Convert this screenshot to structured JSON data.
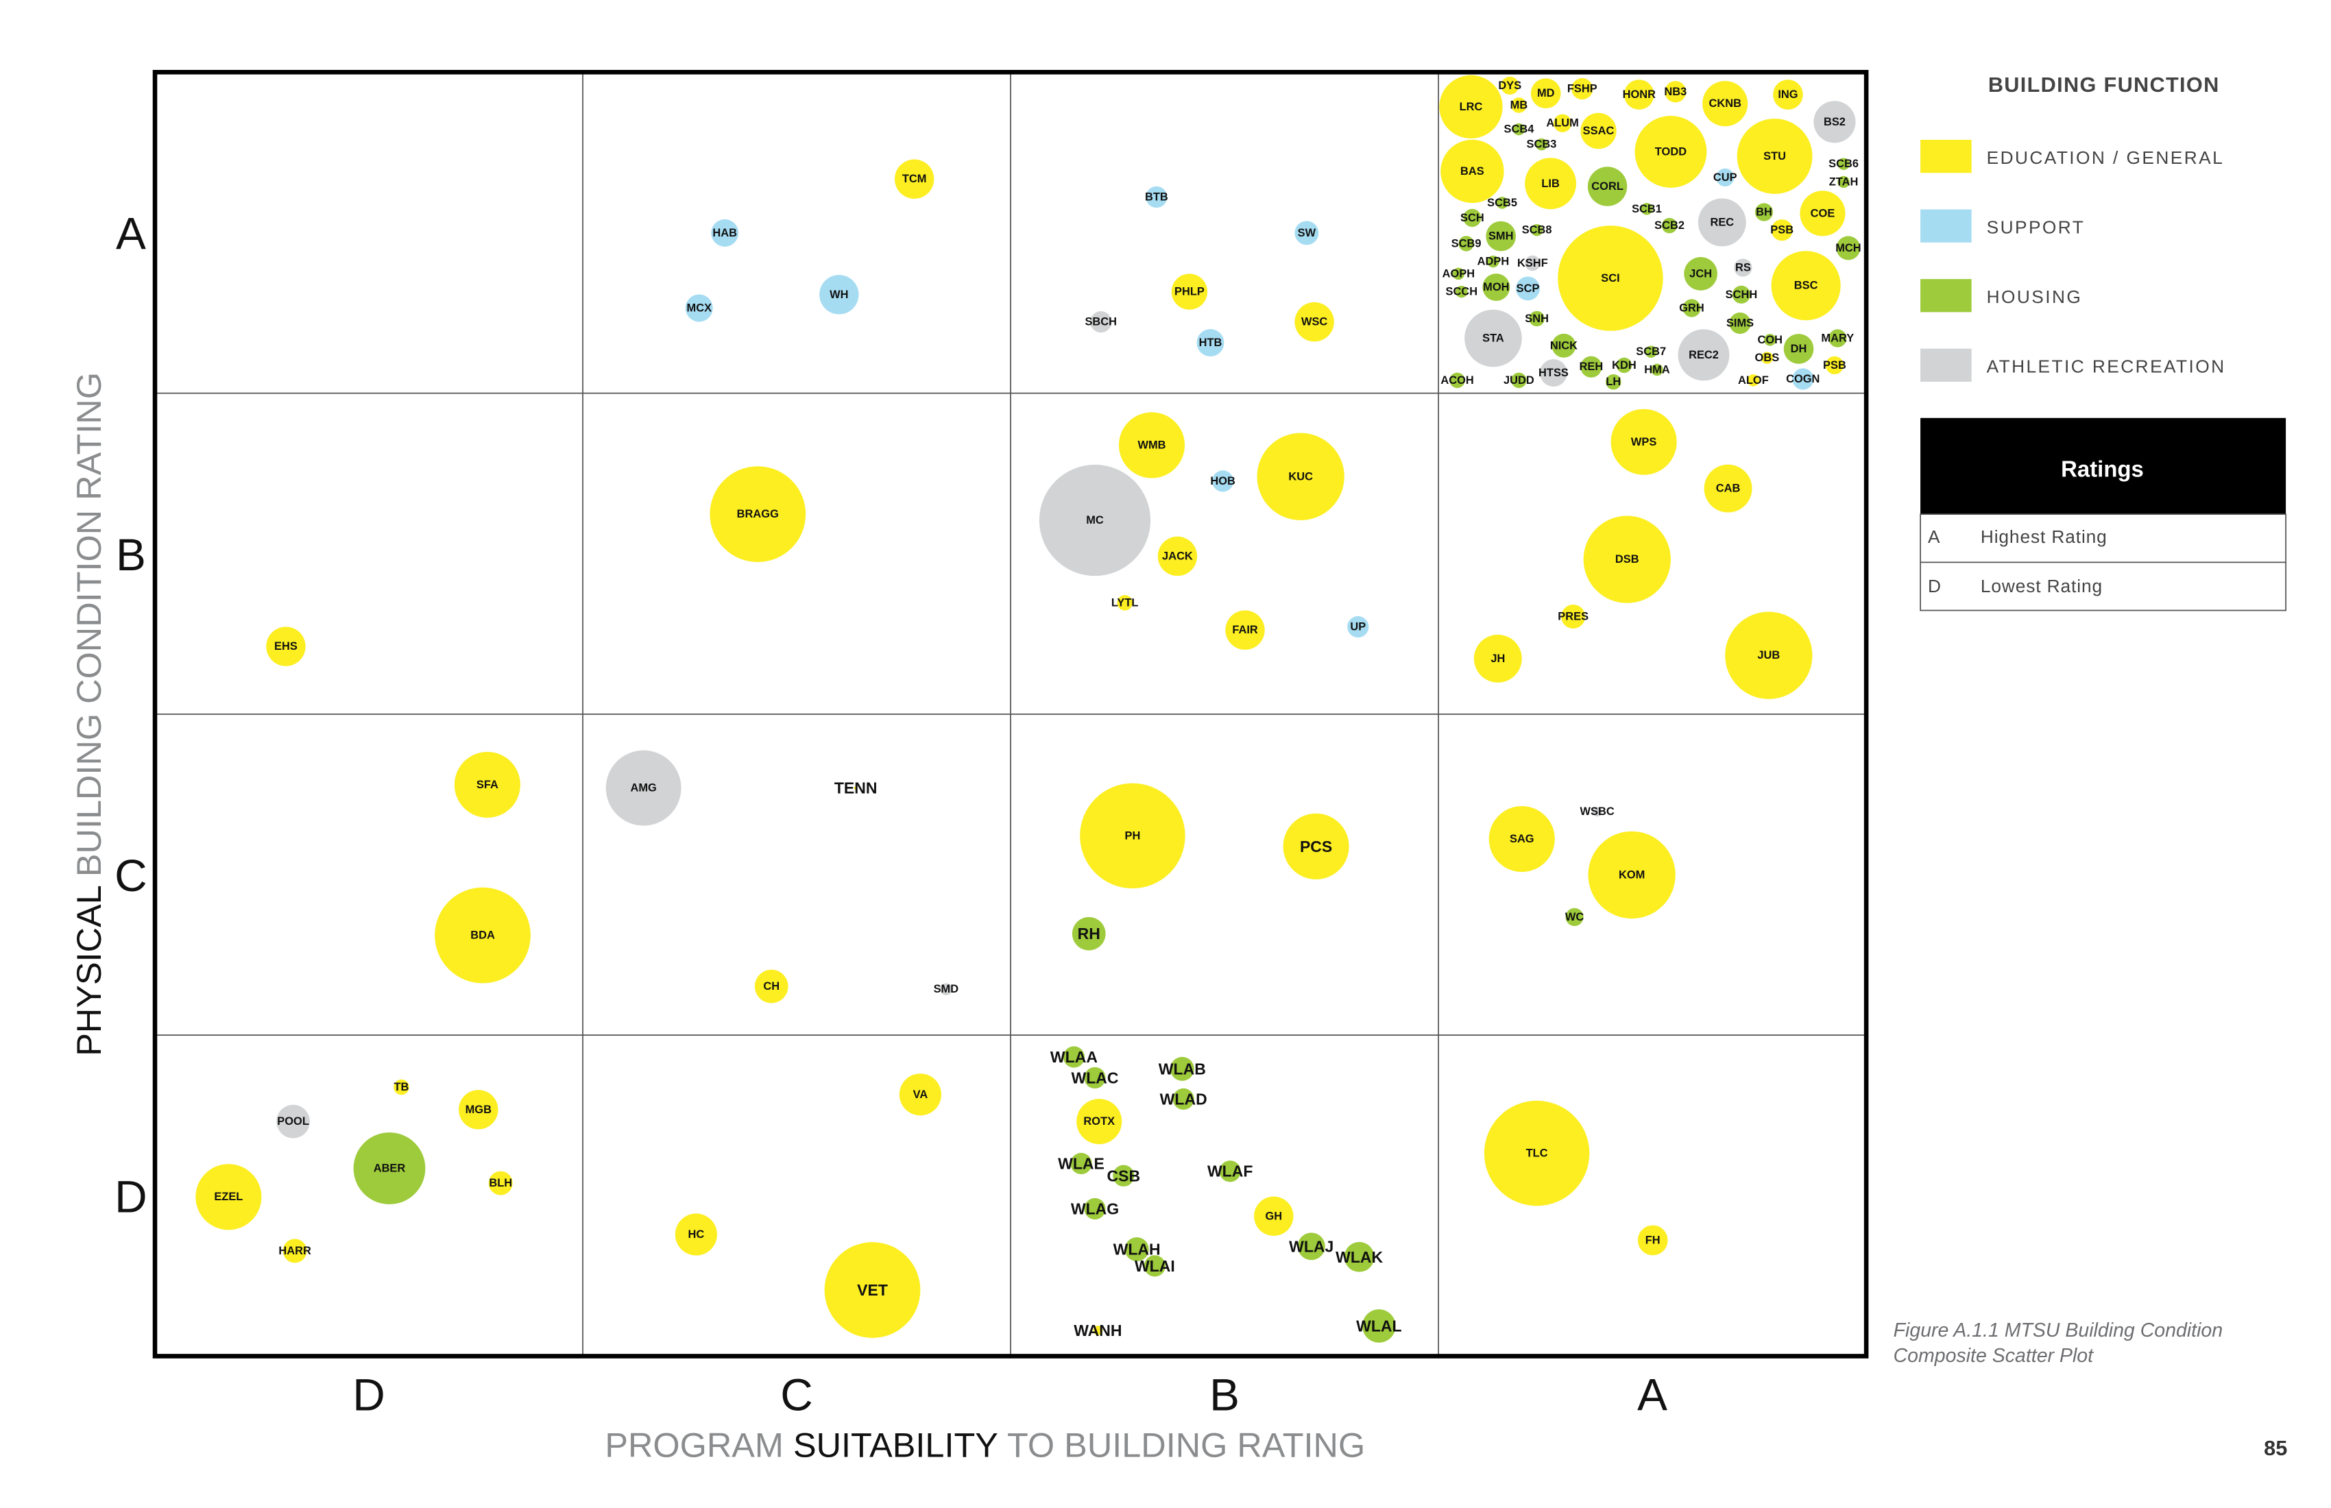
{
  "chart_data": {
    "type": "scatter",
    "subtype": "bubble",
    "xlabel_parts": [
      "PROGRAM ",
      "SUITABILITY",
      " TO BUILDING RATING"
    ],
    "ylabel_parts": [
      "PHYSICAL ",
      "BUILDING CONDITION RATING"
    ],
    "x_ticks": [
      "D",
      "C",
      "B",
      "A"
    ],
    "y_ticks": [
      "D",
      "C",
      "B",
      "A"
    ],
    "xlim": [
      0,
      4
    ],
    "ylim": [
      0,
      4
    ],
    "grid": true,
    "legend": {
      "title": "BUILDING FUNCTION",
      "placement": "right",
      "entries": [
        {
          "key": "E",
          "label": "EDUCATION / GENERAL",
          "color": "#fcee21"
        },
        {
          "key": "S",
          "label": "SUPPORT",
          "color": "#a6dcf2"
        },
        {
          "key": "H",
          "label": "HOUSING",
          "color": "#9ecb3b"
        },
        {
          "key": "A",
          "label": "ATHLETIC RECREATION",
          "color": "#d1d3d4"
        }
      ]
    },
    "points_fields": [
      "label",
      "x",
      "y",
      "radius_x_units",
      "category",
      "emphasis"
    ],
    "points": [
      [
        "TCM",
        1.775,
        3.667,
        0.046,
        "E",
        0
      ],
      [
        "HAB",
        1.332,
        3.499,
        0.032,
        "S",
        0
      ],
      [
        "WH",
        1.599,
        3.307,
        0.046,
        "S",
        0
      ],
      [
        "MCX",
        1.272,
        3.265,
        0.032,
        "S",
        0
      ],
      [
        "BTB",
        2.341,
        3.611,
        0.025,
        "S",
        0
      ],
      [
        "SW",
        2.692,
        3.499,
        0.028,
        "S",
        0
      ],
      [
        "PHLP",
        2.418,
        3.316,
        0.042,
        "E",
        0
      ],
      [
        "WSC",
        2.71,
        3.222,
        0.046,
        "E",
        0
      ],
      [
        "SBCH",
        2.211,
        3.222,
        0.025,
        "A",
        0
      ],
      [
        "HTB",
        2.467,
        3.157,
        0.032,
        "S",
        0
      ],
      [
        "LRC",
        3.076,
        3.892,
        0.074,
        "E",
        0
      ],
      [
        "DYS",
        3.167,
        3.958,
        0.021,
        "E",
        0
      ],
      [
        "MD",
        3.251,
        3.934,
        0.035,
        "E",
        0
      ],
      [
        "FSHP",
        3.336,
        3.948,
        0.025,
        "E",
        0
      ],
      [
        "MB",
        3.188,
        3.897,
        0.018,
        "E",
        0
      ],
      [
        "HONR",
        3.469,
        3.93,
        0.035,
        "E",
        0
      ],
      [
        "NB3",
        3.554,
        3.939,
        0.025,
        "E",
        0
      ],
      [
        "CKNB",
        3.67,
        3.902,
        0.053,
        "E",
        0
      ],
      [
        "ING",
        3.817,
        3.93,
        0.035,
        "E",
        0
      ],
      [
        "BS2",
        3.926,
        3.845,
        0.049,
        "A",
        0
      ],
      [
        "SCB4",
        3.188,
        3.822,
        0.014,
        "H",
        0
      ],
      [
        "ALUM",
        3.29,
        3.841,
        0.021,
        "E",
        0
      ],
      [
        "SSAC",
        3.374,
        3.817,
        0.042,
        "E",
        0
      ],
      [
        "SCB3",
        3.241,
        3.775,
        0.014,
        "H",
        0
      ],
      [
        "TODD",
        3.543,
        3.752,
        0.084,
        "E",
        0
      ],
      [
        "STU",
        3.786,
        3.738,
        0.088,
        "E",
        0
      ],
      [
        "SCB6",
        3.947,
        3.714,
        0.014,
        "H",
        0
      ],
      [
        "ZTAH",
        3.947,
        3.658,
        0.014,
        "H",
        0
      ],
      [
        "BAS",
        3.079,
        3.691,
        0.074,
        "E",
        0
      ],
      [
        "LIB",
        3.262,
        3.653,
        0.06,
        "E",
        0
      ],
      [
        "CORL",
        3.395,
        3.644,
        0.046,
        "H",
        0
      ],
      [
        "CUP",
        3.67,
        3.672,
        0.021,
        "S",
        0
      ],
      [
        "SCB5",
        3.149,
        3.593,
        0.014,
        "H",
        0
      ],
      [
        "SCH",
        3.079,
        3.546,
        0.021,
        "H",
        0
      ],
      [
        "SCB1",
        3.487,
        3.574,
        0.014,
        "H",
        0
      ],
      [
        "SCB2",
        3.54,
        3.522,
        0.018,
        "H",
        0
      ],
      [
        "REC",
        3.663,
        3.532,
        0.056,
        "A",
        0
      ],
      [
        "BH",
        3.761,
        3.564,
        0.021,
        "H",
        0
      ],
      [
        "COE",
        3.898,
        3.56,
        0.053,
        "E",
        0
      ],
      [
        "PSB",
        3.803,
        3.508,
        0.025,
        "E",
        0
      ],
      [
        "SMH",
        3.146,
        3.489,
        0.035,
        "H",
        0
      ],
      [
        "SCB8",
        3.23,
        3.508,
        0.014,
        "H",
        0
      ],
      [
        "SCB9",
        3.065,
        3.466,
        0.018,
        "H",
        0
      ],
      [
        "MCH",
        3.958,
        3.452,
        0.028,
        "H",
        0
      ],
      [
        "ADPH",
        3.128,
        3.41,
        0.014,
        "H",
        0
      ],
      [
        "KSHF",
        3.22,
        3.405,
        0.018,
        "A",
        0
      ],
      [
        "SCI",
        3.402,
        3.358,
        0.123,
        "E",
        0
      ],
      [
        "JCH",
        3.613,
        3.372,
        0.039,
        "H",
        0
      ],
      [
        "RS",
        3.712,
        3.391,
        0.021,
        "A",
        0
      ],
      [
        "BSC",
        3.859,
        3.335,
        0.081,
        "E",
        0
      ],
      [
        "AOPH",
        3.047,
        3.372,
        0.014,
        "H",
        0
      ],
      [
        "SCCH",
        3.054,
        3.316,
        0.014,
        "H",
        0
      ],
      [
        "MOH",
        3.135,
        3.33,
        0.032,
        "H",
        0
      ],
      [
        "SCP",
        3.209,
        3.326,
        0.028,
        "S",
        0
      ],
      [
        "SCHH",
        3.708,
        3.307,
        0.021,
        "H",
        0
      ],
      [
        "GRH",
        3.592,
        3.265,
        0.021,
        "H",
        0
      ],
      [
        "SNH",
        3.23,
        3.232,
        0.018,
        "H",
        0
      ],
      [
        "SIMS",
        3.705,
        3.218,
        0.025,
        "H",
        0
      ],
      [
        "STA",
        3.128,
        3.171,
        0.067,
        "A",
        0
      ],
      [
        "NICK",
        3.293,
        3.148,
        0.028,
        "H",
        0
      ],
      [
        "SCB7",
        3.497,
        3.129,
        0.014,
        "H",
        0
      ],
      [
        "REC2",
        3.62,
        3.119,
        0.06,
        "A",
        0
      ],
      [
        "COH",
        3.775,
        3.166,
        0.014,
        "H",
        0
      ],
      [
        "DH",
        3.842,
        3.138,
        0.035,
        "H",
        0
      ],
      [
        "MARY",
        3.933,
        3.171,
        0.021,
        "H",
        0
      ],
      [
        "OBS",
        3.768,
        3.11,
        0.014,
        "E",
        0
      ],
      [
        "REH",
        3.357,
        3.082,
        0.025,
        "H",
        0
      ],
      [
        "KDH",
        3.434,
        3.087,
        0.018,
        "H",
        0
      ],
      [
        "HMA",
        3.511,
        3.073,
        0.014,
        "H",
        0
      ],
      [
        "HTSS",
        3.269,
        3.063,
        0.032,
        "A",
        0
      ],
      [
        "JUDD",
        3.188,
        3.04,
        0.018,
        "H",
        0
      ],
      [
        "ACOH",
        3.044,
        3.04,
        0.018,
        "H",
        0
      ],
      [
        "LH",
        3.409,
        3.035,
        0.018,
        "H",
        0
      ],
      [
        "ALOF",
        3.736,
        3.04,
        0.014,
        "E",
        0
      ],
      [
        "COGN",
        3.852,
        3.044,
        0.025,
        "S",
        0
      ],
      [
        "PSB",
        3.926,
        3.087,
        0.021,
        "E",
        0
      ],
      [
        "EHS",
        0.306,
        2.211,
        0.046,
        "E",
        0
      ],
      [
        "BRAGG",
        1.409,
        2.623,
        0.112,
        "E",
        0
      ],
      [
        "WMB",
        2.33,
        2.838,
        0.077,
        "E",
        0
      ],
      [
        "HOB",
        2.496,
        2.726,
        0.025,
        "S",
        0
      ],
      [
        "KUC",
        2.678,
        2.74,
        0.102,
        "E",
        0
      ],
      [
        "MC",
        2.197,
        2.604,
        0.13,
        "A",
        0
      ],
      [
        "JACK",
        2.39,
        2.492,
        0.046,
        "E",
        0
      ],
      [
        "LYTL",
        2.267,
        2.347,
        0.018,
        "E",
        0
      ],
      [
        "FAIR",
        2.548,
        2.262,
        0.046,
        "E",
        0
      ],
      [
        "UP",
        2.812,
        2.272,
        0.025,
        "S",
        0
      ],
      [
        "WPS",
        3.48,
        2.848,
        0.077,
        "E",
        0
      ],
      [
        "CAB",
        3.677,
        2.703,
        0.056,
        "E",
        0
      ],
      [
        "DSB",
        3.441,
        2.482,
        0.102,
        "E",
        0
      ],
      [
        "PRES",
        3.315,
        2.304,
        0.028,
        "E",
        0
      ],
      [
        "JH",
        3.139,
        2.173,
        0.056,
        "E",
        0
      ],
      [
        "JUB",
        3.772,
        2.183,
        0.102,
        "E",
        0
      ],
      [
        "SFA",
        0.777,
        1.78,
        0.077,
        "E",
        0
      ],
      [
        "BDA",
        0.766,
        1.311,
        0.112,
        "E",
        0
      ],
      [
        "AMG",
        1.142,
        1.77,
        0.088,
        "A",
        0
      ],
      [
        "TENN",
        1.638,
        1.77,
        0.004,
        "E",
        1
      ],
      [
        "CH",
        1.441,
        1.152,
        0.039,
        "E",
        0
      ],
      [
        "SMD",
        1.849,
        1.143,
        0.014,
        "A",
        0
      ],
      [
        "PH",
        2.285,
        1.621,
        0.123,
        "E",
        0
      ],
      [
        "PCS",
        2.714,
        1.588,
        0.077,
        "E",
        1
      ],
      [
        "RH",
        2.183,
        1.316,
        0.039,
        "H",
        1
      ],
      [
        "WSBC",
        3.371,
        1.696,
        0.011,
        "A",
        0
      ],
      [
        "SAG",
        3.195,
        1.611,
        0.077,
        "E",
        0
      ],
      [
        "KOM",
        3.452,
        1.499,
        0.102,
        "E",
        0
      ],
      [
        "WC",
        3.318,
        1.368,
        0.021,
        "H",
        0
      ],
      [
        "TB",
        0.576,
        0.838,
        0.018,
        "E",
        0
      ],
      [
        "POOL",
        0.323,
        0.731,
        0.039,
        "A",
        0
      ],
      [
        "MGB",
        0.756,
        0.768,
        0.046,
        "E",
        0
      ],
      [
        "ABER",
        0.548,
        0.585,
        0.084,
        "H",
        0
      ],
      [
        "BLH",
        0.808,
        0.539,
        0.028,
        "E",
        0
      ],
      [
        "EZEL",
        0.172,
        0.496,
        0.077,
        "E",
        0
      ],
      [
        "HARR",
        0.327,
        0.328,
        0.028,
        "E",
        0
      ],
      [
        "VA",
        1.789,
        0.815,
        0.049,
        "E",
        0
      ],
      [
        "HC",
        1.265,
        0.379,
        0.049,
        "E",
        0
      ],
      [
        "VET",
        1.677,
        0.206,
        0.112,
        "E",
        1
      ],
      [
        "WLAA",
        2.148,
        0.932,
        0.025,
        "H",
        1
      ],
      [
        "WLAC",
        2.197,
        0.867,
        0.025,
        "H",
        1
      ],
      [
        "WLAB",
        2.401,
        0.895,
        0.028,
        "H",
        1
      ],
      [
        "WLAD",
        2.404,
        0.801,
        0.025,
        "H",
        1
      ],
      [
        "ROTX",
        2.207,
        0.731,
        0.053,
        "E",
        0
      ],
      [
        "WLAE",
        2.165,
        0.6,
        0.025,
        "H",
        1
      ],
      [
        "CSB",
        2.264,
        0.562,
        0.025,
        "H",
        1
      ],
      [
        "WLAF",
        2.513,
        0.576,
        0.025,
        "H",
        1
      ],
      [
        "WLAG",
        2.197,
        0.459,
        0.025,
        "H",
        1
      ],
      [
        "GH",
        2.615,
        0.436,
        0.046,
        "E",
        0
      ],
      [
        "WLAH",
        2.295,
        0.333,
        0.028,
        "H",
        1
      ],
      [
        "WLAI",
        2.337,
        0.281,
        0.025,
        "H",
        1
      ],
      [
        "WLAJ",
        2.703,
        0.342,
        0.032,
        "H",
        1
      ],
      [
        "WLAK",
        2.815,
        0.309,
        0.035,
        "H",
        1
      ],
      [
        "WANH",
        2.204,
        0.08,
        0.011,
        "E",
        1
      ],
      [
        "WLAL",
        2.861,
        0.094,
        0.039,
        "H",
        1
      ],
      [
        "TLC",
        3.23,
        0.632,
        0.123,
        "E",
        0
      ],
      [
        "FH",
        3.501,
        0.361,
        0.035,
        "E",
        0
      ]
    ]
  },
  "ratings_table": {
    "title": "Ratings",
    "rows": [
      {
        "grade": "A",
        "meaning": "Highest Rating"
      },
      {
        "grade": "D",
        "meaning": "Lowest Rating"
      }
    ]
  },
  "caption": {
    "line1": "Figure A.1.1 MTSU Building Condition",
    "line2": "Composite Scatter Plot"
  },
  "page_number": "85"
}
